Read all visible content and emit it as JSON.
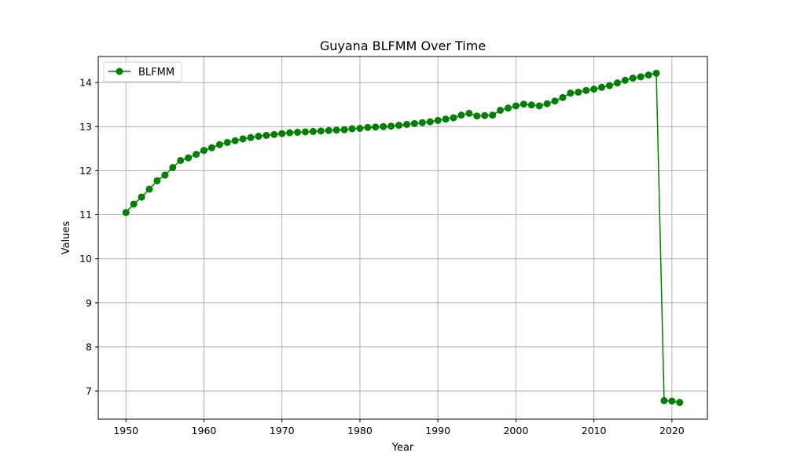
{
  "chart_data": {
    "type": "line",
    "title": "Guyana BLFMM Over Time",
    "xlabel": "Year",
    "ylabel": "Values",
    "xlim": [
      1946.45,
      2024.55
    ],
    "ylim": [
      6.36,
      14.59
    ],
    "xticks": [
      1950,
      1960,
      1970,
      1980,
      1990,
      2000,
      2010,
      2020
    ],
    "yticks": [
      7,
      8,
      9,
      10,
      11,
      12,
      13,
      14
    ],
    "grid": true,
    "legend_position": "top-left",
    "colors": {
      "series": "#008000",
      "grid": "#b0b0b0",
      "axis": "#000000"
    },
    "series": [
      {
        "name": "BLFMM",
        "marker": "circle",
        "x": [
          1950,
          1951,
          1952,
          1953,
          1954,
          1955,
          1956,
          1957,
          1958,
          1959,
          1960,
          1961,
          1962,
          1963,
          1964,
          1965,
          1966,
          1967,
          1968,
          1969,
          1970,
          1971,
          1972,
          1973,
          1974,
          1975,
          1976,
          1977,
          1978,
          1979,
          1980,
          1981,
          1982,
          1983,
          1984,
          1985,
          1986,
          1987,
          1988,
          1989,
          1990,
          1991,
          1992,
          1993,
          1994,
          1995,
          1996,
          1997,
          1998,
          1999,
          2000,
          2001,
          2002,
          2003,
          2004,
          2005,
          2006,
          2007,
          2008,
          2009,
          2010,
          2011,
          2012,
          2013,
          2014,
          2015,
          2016,
          2017,
          2018,
          2019,
          2020,
          2021
        ],
        "y": [
          11.05,
          11.24,
          11.4,
          11.58,
          11.77,
          11.9,
          12.07,
          12.23,
          12.29,
          12.37,
          12.46,
          12.52,
          12.59,
          12.64,
          12.68,
          12.72,
          12.75,
          12.78,
          12.8,
          12.82,
          12.84,
          12.86,
          12.87,
          12.88,
          12.89,
          12.9,
          12.91,
          12.92,
          12.93,
          12.95,
          12.96,
          12.98,
          12.99,
          13.0,
          13.01,
          13.03,
          13.05,
          13.07,
          13.09,
          13.11,
          13.14,
          13.17,
          13.2,
          13.26,
          13.3,
          13.24,
          13.25,
          13.26,
          13.37,
          13.42,
          13.47,
          13.51,
          13.49,
          13.47,
          13.52,
          13.58,
          13.66,
          13.76,
          13.78,
          13.82,
          13.85,
          13.89,
          13.93,
          13.99,
          14.05,
          14.1,
          14.13,
          14.17,
          14.21,
          6.78,
          6.77,
          6.74
        ]
      }
    ]
  }
}
